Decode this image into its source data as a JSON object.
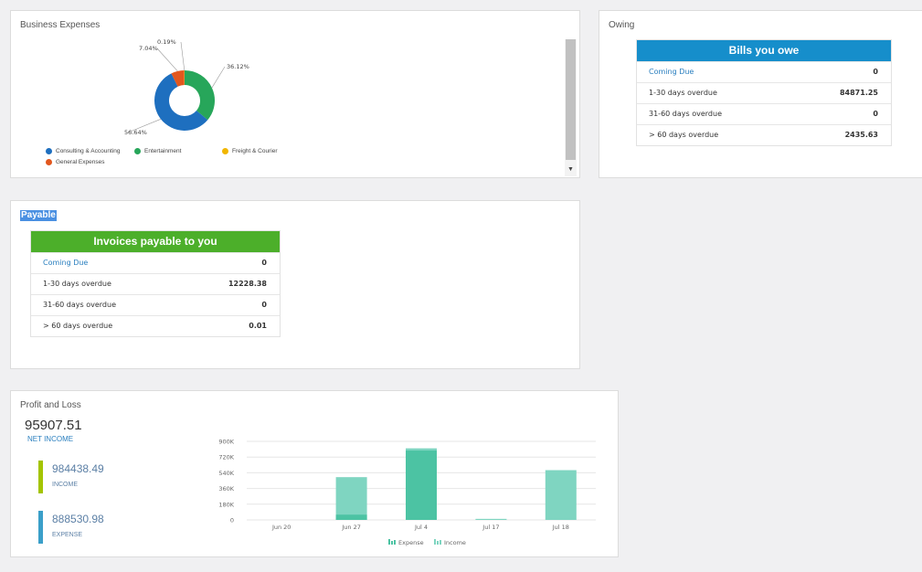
{
  "expenses": {
    "title": "Business Expenses",
    "slices": [
      {
        "name": "Consulting & Accounting",
        "percent": 56.64,
        "label": "56.64%",
        "color": "#1e6fbf"
      },
      {
        "name": "Entertainment",
        "percent": 36.12,
        "label": "36.12%",
        "color": "#27a65a"
      },
      {
        "name": "Freight & Courier",
        "percent": 0.19,
        "label": "0.19%",
        "color": "#f1b600"
      },
      {
        "name": "General Expenses",
        "percent": 7.04,
        "label": "7.04%",
        "color": "#e2571e"
      }
    ]
  },
  "owing": {
    "title": "Owing",
    "header": "Bills you owe",
    "header_color": "#168ecb",
    "rows": [
      {
        "label": "Coming Due",
        "value": "0"
      },
      {
        "label": "1-30 days overdue",
        "value": "84871.25"
      },
      {
        "label": "31-60 days overdue",
        "value": "0"
      },
      {
        "label": "> 60 days overdue",
        "value": "2435.63"
      }
    ]
  },
  "payable": {
    "title": "Payable",
    "header": "Invoices payable to you",
    "header_color": "#4caf2a",
    "rows": [
      {
        "label": "Coming Due",
        "value": "0"
      },
      {
        "label": "1-30 days overdue",
        "value": "12228.38"
      },
      {
        "label": "31-60 days overdue",
        "value": "0"
      },
      {
        "label": "> 60 days overdue",
        "value": "0.01"
      }
    ]
  },
  "profit_loss": {
    "title": "Profit and Loss",
    "net_income": "95907.51",
    "net_income_label": "NET INCOME",
    "income": "984438.49",
    "income_label": "INCOME",
    "income_color": "#a4c400",
    "expense": "888530.98",
    "expense_label": "EXPENSE",
    "expense_color": "#3a9fc9"
  },
  "chart_data": {
    "type": "bar",
    "categories": [
      "Jun 20",
      "Jun 27",
      "Jul 4",
      "Jul 17",
      "Jul 18"
    ],
    "series": [
      {
        "name": "Expense",
        "values": [
          0,
          60000,
          795000,
          0,
          0
        ],
        "color": "#4cc3a3"
      },
      {
        "name": "Income",
        "values": [
          0,
          490000,
          820000,
          12000,
          570000
        ],
        "color": "#7fd5c1"
      }
    ],
    "ytick_labels": [
      "900K",
      "720K",
      "540K",
      "360K",
      "180K",
      "0"
    ],
    "ylim": [
      0,
      900000
    ],
    "legend_position": "bottom",
    "grid": true
  }
}
